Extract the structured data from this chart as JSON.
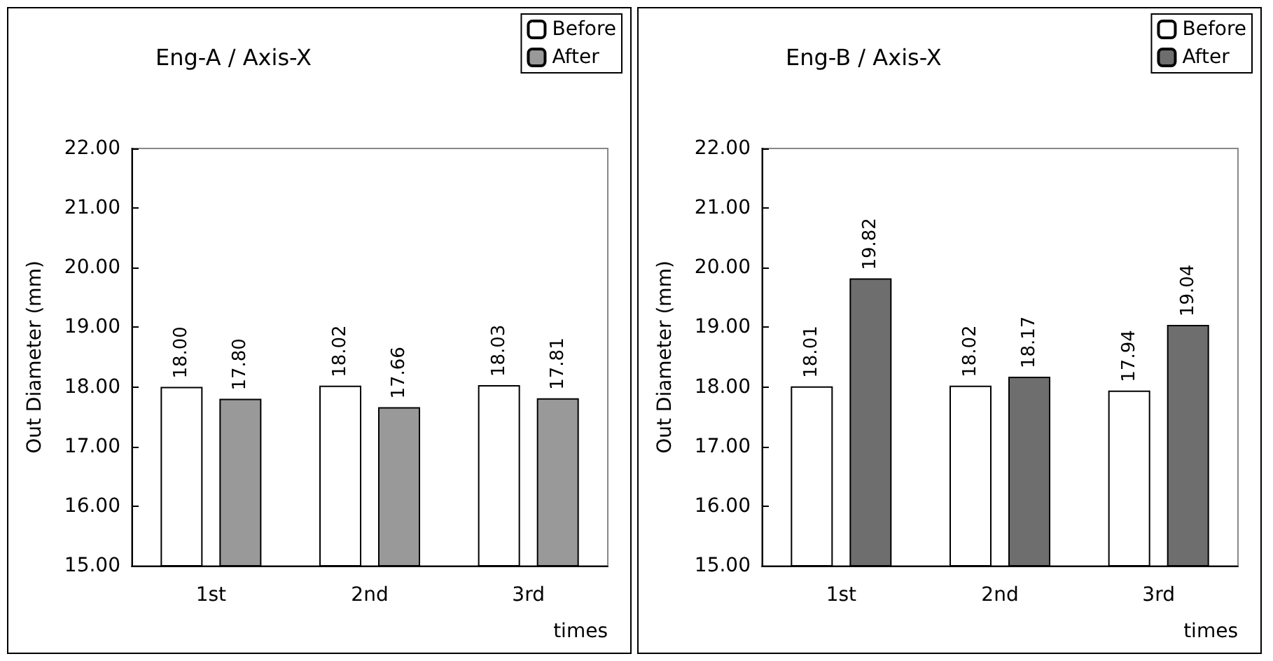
{
  "chart_data": [
    {
      "type": "bar",
      "title": "Eng-A / Axis-X",
      "xlabel": "times",
      "ylabel": "Out Diameter (mm)",
      "categories": [
        "1st",
        "2nd",
        "3rd"
      ],
      "series": [
        {
          "name": "Before",
          "color": "#ffffff",
          "values": [
            18.0,
            18.02,
            18.03
          ],
          "value_labels": [
            "18.00",
            "18.02",
            "18.03"
          ]
        },
        {
          "name": "After",
          "color": "#999999",
          "values": [
            17.8,
            17.66,
            17.81
          ],
          "value_labels": [
            "17.80",
            "17.66",
            "17.81"
          ]
        }
      ],
      "ylim": [
        15,
        22
      ],
      "yticks": [
        {
          "value": 15,
          "label": "15.00"
        },
        {
          "value": 16,
          "label": "16.00"
        },
        {
          "value": 17,
          "label": "17.00"
        },
        {
          "value": 18,
          "label": "18.00"
        },
        {
          "value": 19,
          "label": "19.00"
        },
        {
          "value": 20,
          "label": "20.00"
        },
        {
          "value": 21,
          "label": "21.00"
        },
        {
          "value": 22,
          "label": "22.00"
        }
      ],
      "legend": "top right",
      "grid": false
    },
    {
      "type": "bar",
      "title": "Eng-B / Axis-X",
      "xlabel": "times",
      "ylabel": "Out Diameter (mm)",
      "categories": [
        "1st",
        "2nd",
        "3rd"
      ],
      "series": [
        {
          "name": "Before",
          "color": "#ffffff",
          "values": [
            18.01,
            18.02,
            17.94
          ],
          "value_labels": [
            "18.01",
            "18.02",
            "17.94"
          ]
        },
        {
          "name": "After",
          "color": "#6e6e6e",
          "values": [
            19.82,
            18.17,
            19.04
          ],
          "value_labels": [
            "19.82",
            "18.17",
            "19.04"
          ]
        }
      ],
      "ylim": [
        15,
        22
      ],
      "yticks": [
        {
          "value": 15,
          "label": "15.00"
        },
        {
          "value": 16,
          "label": "16.00"
        },
        {
          "value": 17,
          "label": "17.00"
        },
        {
          "value": 18,
          "label": "18.00"
        },
        {
          "value": 19,
          "label": "19.00"
        },
        {
          "value": 20,
          "label": "20.00"
        },
        {
          "value": 21,
          "label": "21.00"
        },
        {
          "value": 22,
          "label": "22.00"
        }
      ],
      "legend": "top right",
      "grid": false
    }
  ]
}
